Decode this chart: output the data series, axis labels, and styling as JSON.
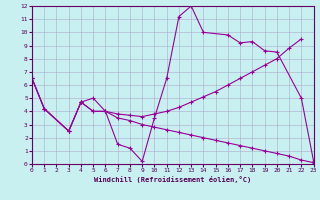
{
  "bg_color": "#c8f0f0",
  "line_color": "#990099",
  "xlabel": "Windchill (Refroidissement éolien,°C)",
  "xlim": [
    0,
    23
  ],
  "ylim": [
    0,
    12
  ],
  "xticks": [
    0,
    1,
    2,
    3,
    4,
    5,
    6,
    7,
    8,
    9,
    10,
    11,
    12,
    13,
    14,
    15,
    16,
    17,
    18,
    19,
    20,
    21,
    22,
    23
  ],
  "yticks": [
    0,
    1,
    2,
    3,
    4,
    5,
    6,
    7,
    8,
    9,
    10,
    11,
    12
  ],
  "curves": [
    {
      "x": [
        0,
        1,
        3,
        4,
        5,
        6,
        7,
        8,
        9,
        10,
        11,
        12,
        13,
        14,
        16,
        17,
        18,
        19,
        20,
        22,
        23
      ],
      "y": [
        6.5,
        4.2,
        2.5,
        4.7,
        5.0,
        4.0,
        1.5,
        1.2,
        0.2,
        3.5,
        6.5,
        11.2,
        12.0,
        10.0,
        9.8,
        9.2,
        9.3,
        8.6,
        8.5,
        5.0,
        0.2
      ]
    },
    {
      "x": [
        0,
        1,
        3,
        4,
        5,
        6,
        7,
        8,
        9,
        10,
        11,
        12,
        13,
        14,
        15,
        16,
        17,
        18,
        19,
        20,
        21,
        22
      ],
      "y": [
        6.5,
        4.2,
        2.5,
        4.7,
        4.0,
        4.0,
        3.8,
        3.7,
        3.6,
        3.8,
        4.0,
        4.3,
        4.7,
        5.1,
        5.5,
        6.0,
        6.5,
        7.0,
        7.5,
        8.0,
        8.8,
        9.5
      ]
    },
    {
      "x": [
        0,
        1,
        3,
        4,
        5,
        6,
        7,
        8,
        9,
        10,
        11,
        12,
        13,
        14,
        15,
        16,
        17,
        18,
        19,
        20,
        21,
        22,
        23
      ],
      "y": [
        6.5,
        4.2,
        2.5,
        4.7,
        4.0,
        4.0,
        3.5,
        3.3,
        3.0,
        2.8,
        2.6,
        2.4,
        2.2,
        2.0,
        1.8,
        1.6,
        1.4,
        1.2,
        1.0,
        0.8,
        0.6,
        0.3,
        0.1
      ]
    }
  ]
}
